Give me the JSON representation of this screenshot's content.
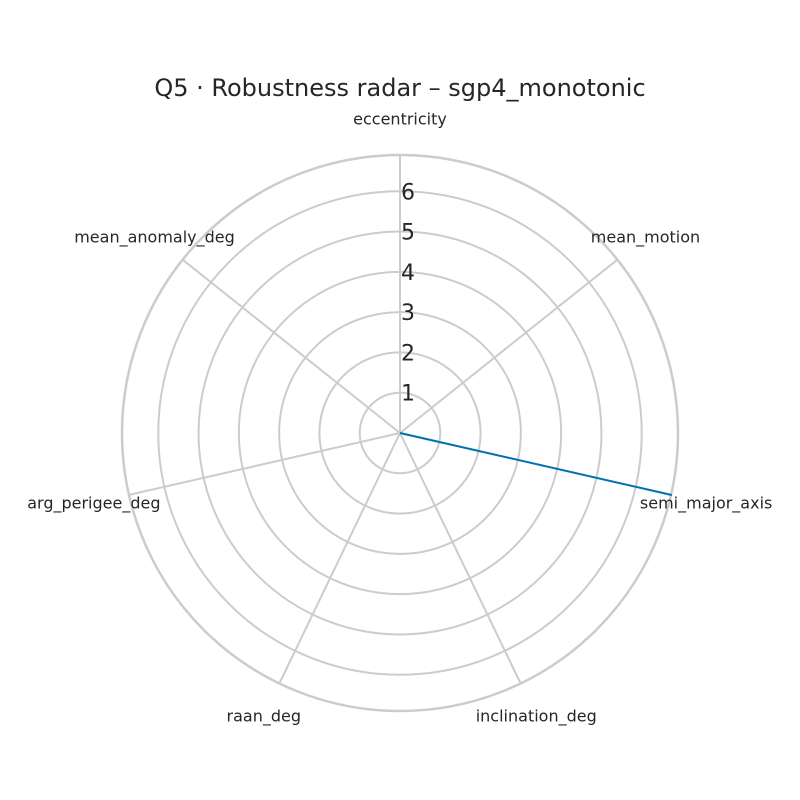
{
  "chart_data": {
    "type": "radar",
    "title": "Q5 · Robustness radar – sgp4_monotonic",
    "axes": [
      "eccentricity",
      "mean_motion",
      "semi_major_axis",
      "inclination_deg",
      "raan_deg",
      "arg_perigee_deg",
      "mean_anomaly_deg"
    ],
    "rticks": [
      1,
      2,
      3,
      4,
      5,
      6
    ],
    "rlim": [
      0,
      6.9
    ],
    "grid": true,
    "series": [
      {
        "values": [
          0,
          0,
          6.9,
          0,
          0,
          0,
          0
        ],
        "color": "#0072b2"
      }
    ]
  }
}
